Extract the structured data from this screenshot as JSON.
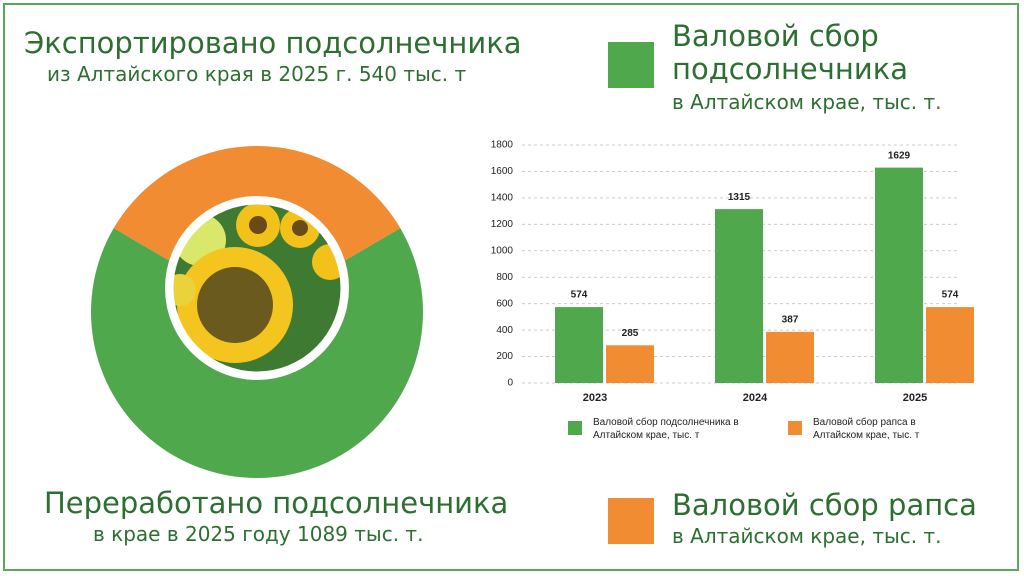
{
  "headings": {
    "export_title": "Экспортировано подсолнечника",
    "export_sub": "из Алтайского края в 2025 г. 540 тыс. т",
    "processed_title": "Переработано подсолнечника",
    "processed_sub": "в крае в 2025 году 1089 тыс. т.",
    "sunflower_title": "Валовой сбор подсолнечника",
    "sunflower_sub": "в Алтайском крае, тыс. т.",
    "rapeseed_title": "Валовой сбор рапса",
    "rapeseed_sub": "в Алтайском крае, тыс. т."
  },
  "chart_data": [
    {
      "type": "pie",
      "donut": true,
      "categories": [
        "Экспортировано подсолнечника",
        "Переработано подсолнечника"
      ],
      "values": [
        540,
        1089
      ],
      "colors": [
        "#f28c33",
        "#4fa84b"
      ]
    },
    {
      "type": "bar",
      "categories": [
        "2023",
        "2024",
        "2025"
      ],
      "series": [
        {
          "name": "Валовой сбор подсолнечника в Алтайском крае, тыс. т",
          "color": "#4fa84b",
          "values": [
            574,
            1315,
            1629
          ]
        },
        {
          "name": "Валовой сбор рапса в Алтайском крае, тыс. т",
          "color": "#f28c33",
          "values": [
            285,
            387,
            574
          ]
        }
      ],
      "ylim": [
        0,
        1800
      ],
      "yticks": [
        0,
        200,
        400,
        600,
        800,
        1000,
        1200,
        1400,
        1600,
        1800
      ],
      "grid": true
    }
  ]
}
